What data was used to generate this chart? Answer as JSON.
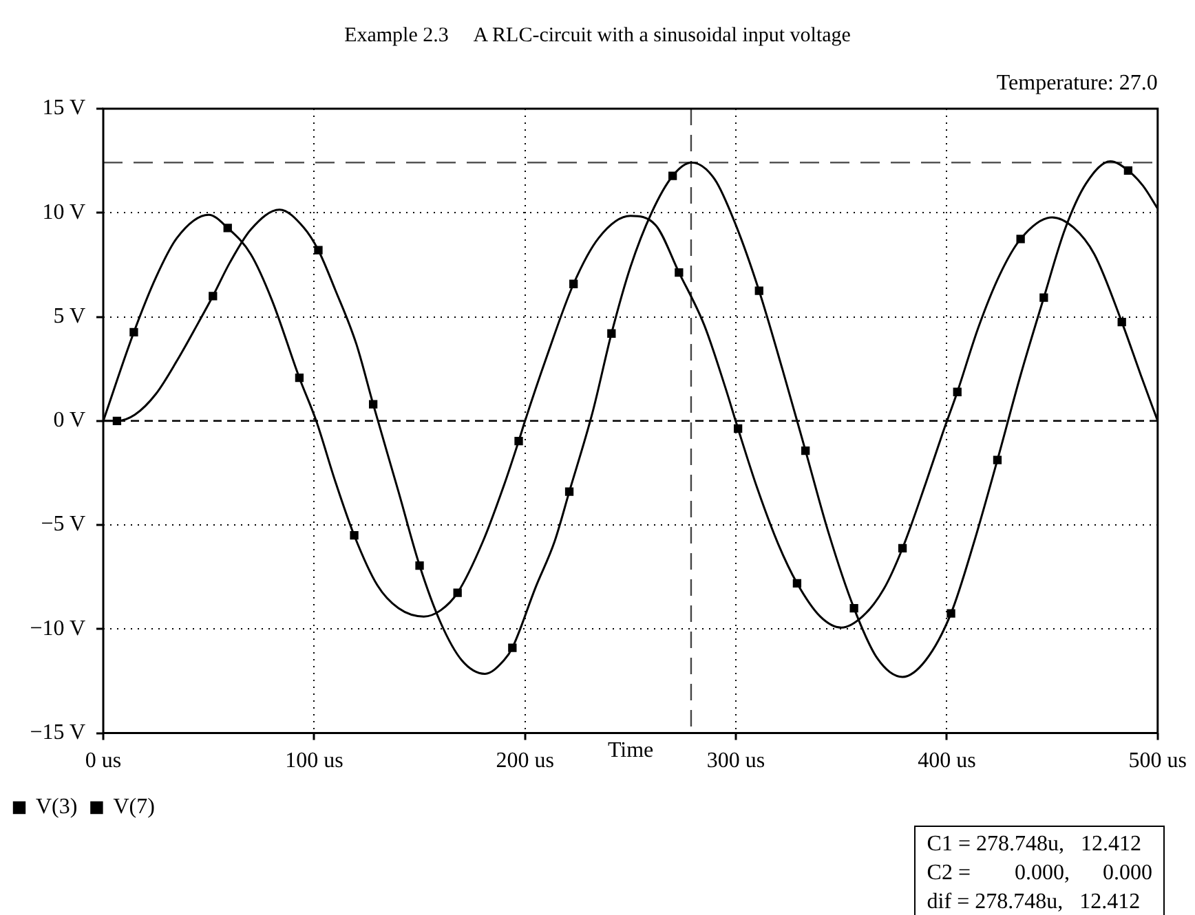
{
  "chart_data": {
    "type": "line",
    "title": "Example 2.3     A RLC-circuit with a sinusoidal input voltage",
    "xlabel": "Time",
    "annotations": [
      "Temperature: 27.0",
      "C1 = 278.748u,   12.412",
      "C2 =        0.000,      0.000",
      "dif = 278.748u,   12.412"
    ],
    "xlim": [
      0,
      500
    ],
    "xticks": [
      {
        "value": 0,
        "label": "0 us"
      },
      {
        "value": 100,
        "label": "100 us"
      },
      {
        "value": 200,
        "label": "200 us"
      },
      {
        "value": 300,
        "label": "300 us"
      },
      {
        "value": 400,
        "label": "400 us"
      },
      {
        "value": 500,
        "label": "500 us"
      }
    ],
    "ylim": [
      -15,
      15
    ],
    "yticks": [
      {
        "value": -15,
        "label": "−15 V"
      },
      {
        "value": -10,
        "label": "−10 V"
      },
      {
        "value": -5,
        "label": "−5 V"
      },
      {
        "value": 0,
        "label": "0 V"
      },
      {
        "value": 5,
        "label": "5 V"
      },
      {
        "value": 10,
        "label": "10 V"
      },
      {
        "value": 15,
        "label": "15 V"
      }
    ],
    "grid": true,
    "legend": "bottom left",
    "ref_lines": [
      {
        "axis": "y",
        "value": 0,
        "color": "#000000",
        "line_style": "dashed"
      },
      {
        "axis": "x",
        "value": 278.748,
        "color": "#444444",
        "line_style": "dashed"
      },
      {
        "axis": "y",
        "value": 12.412,
        "color": "#555555",
        "line_style": "dashed"
      }
    ],
    "series": [
      {
        "name": "V(3)",
        "type": "scatter",
        "color": "#000000",
        "marker": "square",
        "x": [
          6.5,
          52,
          102,
          128,
          150,
          194,
          221,
          241,
          270,
          311,
          333,
          356,
          402,
          424,
          446,
          486
        ],
        "values": [
          0,
          6.0,
          8.2,
          0.8,
          -6.95,
          -10.9,
          -3.4,
          4.2,
          11.77,
          6.25,
          -1.43,
          -9.0,
          -9.25,
          -1.88,
          5.92,
          12.03
        ]
      },
      {
        "name": "V(7)",
        "type": "scatter",
        "color": "#000000",
        "marker": "square",
        "x": [
          14.5,
          59,
          93,
          119,
          168,
          197,
          223,
          273,
          301,
          329,
          379,
          405,
          435,
          483
        ],
        "values": [
          4.26,
          9.27,
          2.07,
          -5.5,
          -8.26,
          -0.97,
          6.58,
          7.13,
          -0.37,
          -7.8,
          -6.12,
          1.39,
          8.74,
          4.75
        ]
      },
      {
        "color": "#000000",
        "marker": "none",
        "x": [
          0,
          6.5,
          15,
          25,
          35,
          45,
          52,
          60,
          70,
          83.6,
          95,
          102,
          110,
          120,
          128,
          140,
          150,
          160,
          170,
          181,
          190,
          194,
          205,
          214,
          221,
          232,
          241,
          250,
          260,
          270,
          279,
          290,
          300,
          311,
          322,
          333,
          344,
          356,
          367,
          379,
          390,
          402,
          413,
          424,
          435,
          446,
          456,
          466,
          477.6,
          486,
          493,
          500
        ],
        "values": [
          0,
          0,
          0.3,
          1.3,
          2.9,
          4.7,
          6.0,
          7.6,
          9.2,
          10.15,
          9.3,
          8.2,
          6.3,
          3.7,
          0.8,
          -3.4,
          -6.95,
          -9.7,
          -11.5,
          -12.15,
          -11.5,
          -10.9,
          -8.0,
          -5.8,
          -3.4,
          0.4,
          4.2,
          7.4,
          10.0,
          11.77,
          12.41,
          11.6,
          9.4,
          6.25,
          2.5,
          -1.43,
          -5.4,
          -9.0,
          -11.4,
          -12.3,
          -11.5,
          -9.25,
          -5.8,
          -1.88,
          2.2,
          5.92,
          9.2,
          11.4,
          12.47,
          12.03,
          11.3,
          10.2
        ]
      },
      {
        "color": "#000000",
        "marker": "none",
        "x": [
          0,
          14.5,
          25,
          35,
          50,
          59,
          70,
          80,
          93,
          101,
          110,
          119,
          130,
          140,
          152,
          160,
          168,
          180,
          190,
          197,
          200,
          210,
          223,
          235,
          250,
          262,
          273,
          285,
          295,
          301,
          310,
          320,
          329,
          340,
          350,
          360,
          370,
          379,
          390,
          398,
          405,
          415,
          425,
          435,
          450,
          460,
          470,
          483,
          492,
          500
        ],
        "values": [
          0,
          4.26,
          6.9,
          8.8,
          9.9,
          9.27,
          8.0,
          5.8,
          2.07,
          0,
          -2.9,
          -5.5,
          -7.9,
          -9.0,
          -9.4,
          -9.1,
          -8.26,
          -5.8,
          -3.1,
          -0.97,
          0,
          3.0,
          6.58,
          8.8,
          9.85,
          9.4,
          7.13,
          4.6,
          1.6,
          -0.37,
          -3.2,
          -5.9,
          -7.8,
          -9.4,
          -9.93,
          -9.4,
          -8.1,
          -6.12,
          -3.0,
          -0.6,
          1.39,
          4.5,
          7.0,
          8.74,
          9.78,
          9.3,
          8.0,
          4.75,
          2.2,
          0
        ]
      }
    ]
  }
}
